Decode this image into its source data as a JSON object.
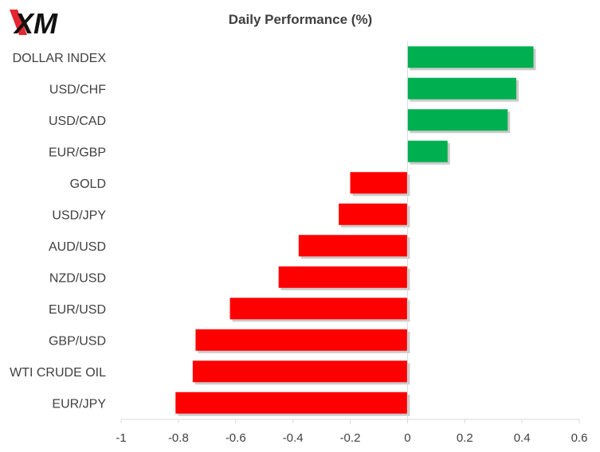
{
  "logo": {
    "text": "XM",
    "color": "#e3262f"
  },
  "chart_data": {
    "type": "bar",
    "orientation": "horizontal",
    "title": "Daily Performance  (%)",
    "categories": [
      "DOLLAR INDEX",
      "USD/CHF",
      "USD/CAD",
      "EUR/GBP",
      "GOLD",
      "USD/JPY",
      "AUD/USD",
      "NZD/USD",
      "EUR/USD",
      "GBP/USD",
      "WTI CRUDE OIL",
      "EUR/JPY"
    ],
    "values": [
      0.44,
      0.38,
      0.35,
      0.14,
      -0.2,
      -0.24,
      -0.38,
      -0.45,
      -0.62,
      -0.74,
      -0.75,
      -0.81
    ],
    "xlim": [
      -1,
      0.6
    ],
    "xticks": [
      -1,
      -0.8,
      -0.6,
      -0.4,
      -0.2,
      0,
      0.2,
      0.4,
      0.6
    ],
    "xtick_labels": [
      "-1",
      "-0.8",
      "-0.6",
      "-0.4",
      "-0.2",
      "0",
      "0.2",
      "0.4",
      "0.6"
    ],
    "grid": false,
    "colors": {
      "positive": "#00b050",
      "negative": "#ff0000",
      "axis": "#d9d9d9"
    }
  }
}
